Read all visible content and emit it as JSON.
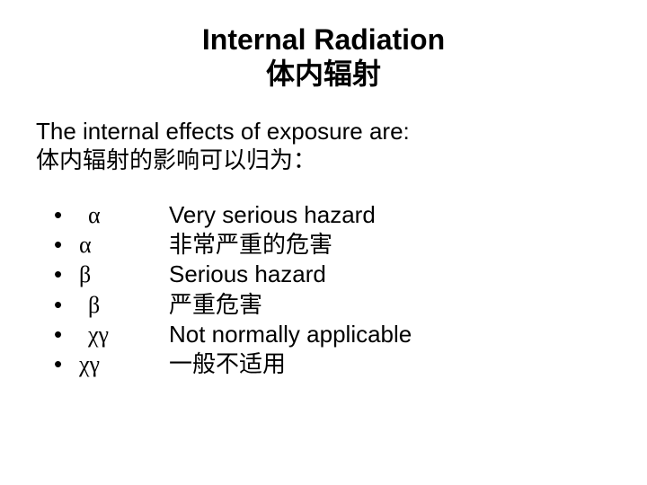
{
  "title": {
    "line1": "Internal Radiation",
    "line2": "体内辐射",
    "fontsize": 32,
    "fontweight": "bold",
    "align": "center",
    "color": "#000000"
  },
  "subtitle": {
    "line1": "The internal effects of exposure are:",
    "line2": "体内辐射的影响可以归为：",
    "fontsize": 26,
    "color": "#000000"
  },
  "bullets": [
    {
      "mark": "•",
      "symbol": " α",
      "desc": "Very serious hazard"
    },
    {
      "mark": "•",
      "symbol": "α",
      "desc": "非常严重的危害"
    },
    {
      "mark": "•",
      "symbol": "β",
      "desc": "Serious hazard"
    },
    {
      "mark": "•",
      "symbol": " β",
      "desc": "严重危害"
    },
    {
      "mark": "•",
      "symbol": " χγ",
      "desc": "Not normally applicable"
    },
    {
      "mark": "•",
      "symbol": "χγ",
      "desc": "一般不适用"
    }
  ],
  "style": {
    "background_color": "#ffffff",
    "text_color": "#000000",
    "body_fontsize": 26,
    "bullet_mark": "•",
    "slide_width": 720,
    "slide_height": 540
  }
}
